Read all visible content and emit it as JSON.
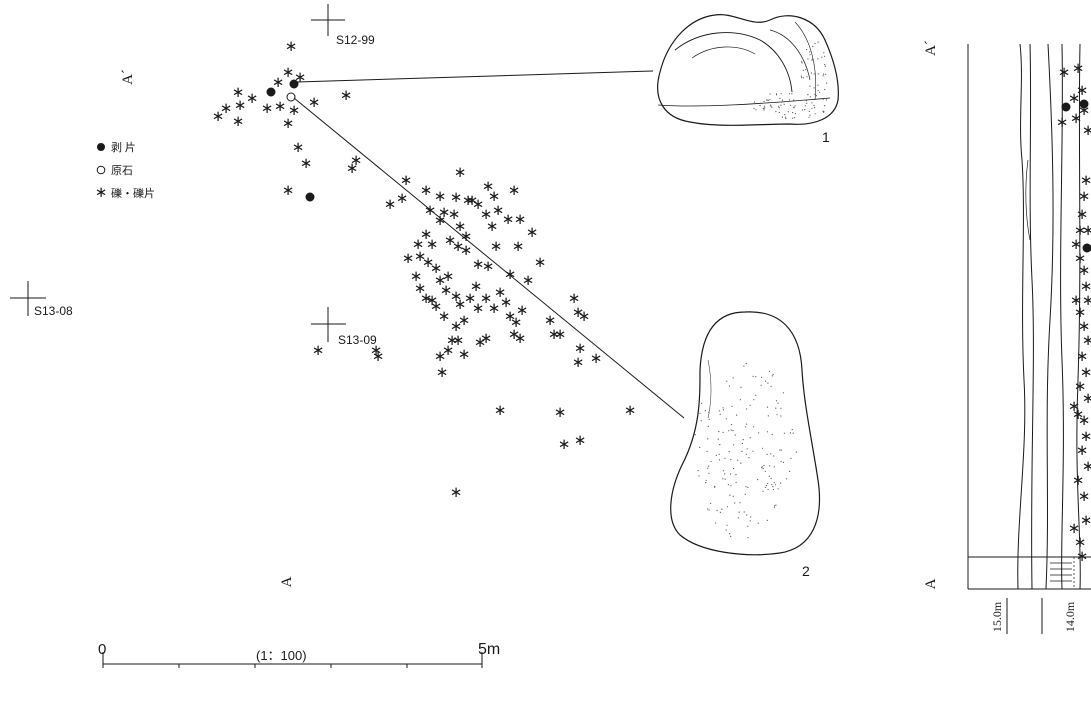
{
  "grid_labels": {
    "s12_99": "S12-99",
    "s13_08": "S13-08",
    "s13_09": "S13-09"
  },
  "section_labels": {
    "a_prime_top": "A´",
    "a_bottom": "A",
    "a_prime_profile": "A´",
    "a_profile": "A"
  },
  "legend": {
    "items": [
      {
        "symbol": "●",
        "label": "剥 片"
      },
      {
        "symbol": "○",
        "label": "原石"
      },
      {
        "symbol": "∗",
        "label": "礫・礫片"
      }
    ]
  },
  "artifacts": {
    "one_label": "1",
    "two_label": "2"
  },
  "elevations": {
    "left": "15.0m",
    "right": "14.0m"
  },
  "scale_bar": {
    "zero": "0",
    "ratio": "(1：100)",
    "max": "5m"
  },
  "colors": {
    "ink": "#1a1a1a",
    "stipple": "#555555"
  },
  "icons": {
    "flake": "filled-circle",
    "raw_stone": "open-circle",
    "gravel": "asterisk"
  }
}
